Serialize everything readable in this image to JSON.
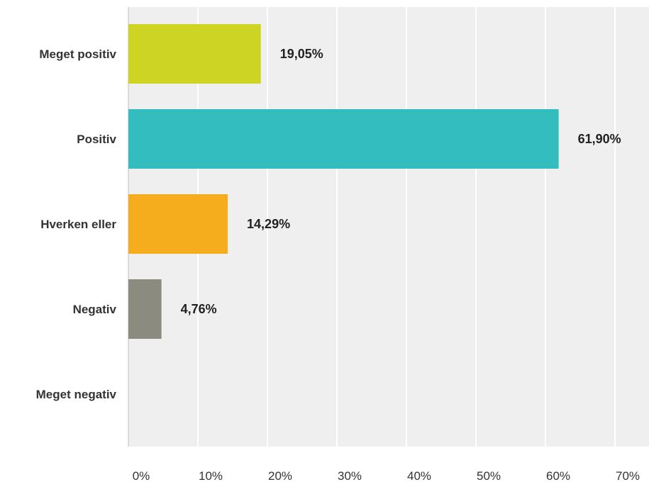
{
  "chart_data": {
    "type": "bar",
    "orientation": "horizontal",
    "categories": [
      "Meget positiv",
      "Positiv",
      "Hverken eller",
      "Negativ",
      "Meget negativ"
    ],
    "values": [
      19.05,
      61.9,
      14.29,
      4.76,
      0
    ],
    "value_labels": [
      "19,05%",
      "61,90%",
      "14,29%",
      "4,76%",
      ""
    ],
    "colors": [
      "#cdd424",
      "#33bdbf",
      "#f5ad1e",
      "#8b8c7f",
      "#cccccc"
    ],
    "xlim": [
      0,
      70
    ],
    "x_ticks": [
      0,
      10,
      20,
      30,
      40,
      50,
      60,
      70
    ],
    "x_tick_labels": [
      "0%",
      "10%",
      "20%",
      "30%",
      "40%",
      "50%",
      "60%",
      "70%"
    ],
    "title": "",
    "xlabel": "",
    "ylabel": "",
    "grid": true,
    "plot_background": "#efefef",
    "gridline_color": "#ffffff"
  }
}
